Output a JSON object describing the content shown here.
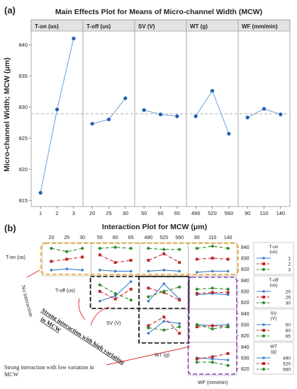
{
  "panel_a": {
    "label": "(a)",
    "title": "Main Effects Plot for Means of Micro-channel Width (MCW)",
    "ylabel": "Micro-channel Width; MCW (μm)"
  },
  "panel_b": {
    "label": "(b)",
    "title": "Interaction Plot for MCW (μm)"
  },
  "chart_data": [
    {
      "type": "line",
      "title": "Main Effects Plot for Means of Micro-channel Width (MCW)",
      "ylabel": "Micro-channel Width; MCW (μm)",
      "ylim": [
        814,
        844
      ],
      "yticks": [
        815,
        820,
        825,
        830,
        835,
        840
      ],
      "reference_mean": 828.9,
      "grid": false,
      "factors": [
        {
          "name": "T-on (us)",
          "levels": [
            "1",
            "2",
            "3"
          ],
          "values": [
            816.2,
            829.6,
            841.0
          ]
        },
        {
          "name": "T-off (us)",
          "levels": [
            "20",
            "25",
            "30"
          ],
          "values": [
            827.3,
            828.0,
            831.4
          ]
        },
        {
          "name": "SV (V)",
          "levels": [
            "50",
            "60",
            "65"
          ],
          "values": [
            829.5,
            828.8,
            828.5
          ]
        },
        {
          "name": "WT (g)",
          "levels": [
            "490",
            "520",
            "560"
          ],
          "values": [
            828.5,
            832.6,
            825.7
          ]
        },
        {
          "name": "WF (mm/min)",
          "levels": [
            "90",
            "110",
            "140"
          ],
          "values": [
            828.3,
            829.7,
            828.8
          ]
        }
      ]
    },
    {
      "type": "line",
      "title": "Interaction Plot for MCW (μm)",
      "ylim": [
        815,
        843
      ],
      "yticks": [
        820,
        830,
        840
      ],
      "row_factors": [
        "T-on (us)",
        "T-off (us)",
        "SV (V)",
        "WT (g)"
      ],
      "col_factors": [
        {
          "name": "T-off (us)",
          "levels": [
            "20",
            "25",
            "30"
          ]
        },
        {
          "name": "SV (V)",
          "levels": [
            "50",
            "60",
            "65"
          ]
        },
        {
          "name": "WT (g)",
          "levels": [
            "490",
            "520",
            "560"
          ]
        },
        {
          "name": "WF (mm/min)",
          "levels": [
            "90",
            "110",
            "140"
          ]
        }
      ],
      "cells": [
        {
          "row": 0,
          "col": 0,
          "series": [
            [
              819,
              820,
              819
            ],
            [
              827,
              829,
              831
            ],
            [
              839,
              836,
              839
            ]
          ]
        },
        {
          "row": 0,
          "col": 1,
          "series": [
            [
              819,
              818,
              818
            ],
            [
              833,
              826,
              828
            ],
            [
              839,
              840,
              839
            ]
          ]
        },
        {
          "row": 0,
          "col": 2,
          "series": [
            [
              818,
              819,
              818
            ],
            [
              828,
              834,
              826
            ],
            [
              839,
              838,
              838
            ]
          ]
        },
        {
          "row": 0,
          "col": 3,
          "series": [
            [
              817,
              818,
              818
            ],
            [
              829,
              830,
              829
            ],
            [
              839,
              841,
              839
            ]
          ]
        },
        {
          "row": 1,
          "col": 1,
          "series": [
            [
              821,
              826,
              839
            ],
            [
              830,
              823,
              832
            ],
            [
              836,
              828,
              822
            ]
          ]
        },
        {
          "row": 1,
          "col": 2,
          "series": [
            [
              821,
              837,
              823
            ],
            [
              833,
              829,
              822
            ],
            [
              825,
              830,
              834
            ]
          ]
        },
        {
          "row": 1,
          "col": 3,
          "series": [
            [
              827,
              828,
              827
            ],
            [
              828,
              829,
              829
            ],
            [
              832,
              833,
              832
            ]
          ]
        },
        {
          "row": 2,
          "col": 2,
          "series": [
            [
              822,
              833,
              831
            ],
            [
              829,
              837,
              822
            ],
            [
              827,
              825,
              828
            ]
          ]
        },
        {
          "row": 2,
          "col": 3,
          "series": [
            [
              830,
              829,
              830
            ],
            [
              828,
              829,
              828
            ],
            [
              830,
              826,
              828
            ]
          ]
        },
        {
          "row": 3,
          "col": 3,
          "series": [
            [
              830,
              829,
              828
            ],
            [
              829,
              831,
              834
            ],
            [
              826,
              826,
              823
            ]
          ]
        }
      ],
      "legends": [
        {
          "title": "T-on (us)",
          "items": [
            "1",
            "2",
            "3"
          ]
        },
        {
          "title": "T-off (us)",
          "items": [
            "20",
            "25",
            "30"
          ]
        },
        {
          "title": "SV (V)",
          "items": [
            "50",
            "60",
            "65"
          ]
        },
        {
          "title": "WT (g)",
          "items": [
            "490",
            "520",
            "560"
          ]
        }
      ],
      "series_colors": [
        "#3a7dc9",
        "#c0262c",
        "#2a8a2a"
      ],
      "annotations": [
        "No interaction",
        "Strong interaction with high variation in MCW",
        "Strong interaction with low variation in MCW"
      ],
      "box_colors": {
        "no_interaction": "#e8a020",
        "high_variation": "#111111",
        "low_variation": "#8a3fb0"
      }
    }
  ]
}
